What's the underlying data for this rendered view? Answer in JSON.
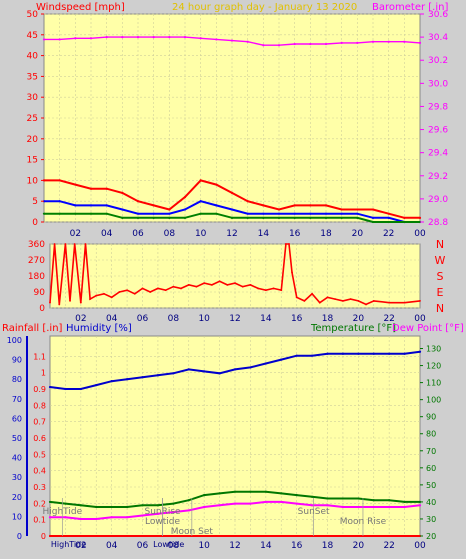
{
  "chart_data": [
    {
      "type": "line",
      "title": "24 hour graph day - January 13 2020",
      "ylabel_left": "Windspeed [mph]",
      "ylabel_right": "Barometer [.in]",
      "x_tick_labels": [
        "02",
        "04",
        "06",
        "08",
        "10",
        "12",
        "14",
        "16",
        "18",
        "20",
        "22",
        "00"
      ],
      "x_hours": [
        2,
        4,
        6,
        8,
        10,
        12,
        14,
        16,
        18,
        20,
        22,
        24
      ],
      "ylim_left": [
        0,
        50
      ],
      "y_ticks_left": [
        0,
        5,
        10,
        15,
        20,
        25,
        30,
        35,
        40,
        45,
        50
      ],
      "ylim_right": [
        28.8,
        30.6
      ],
      "y_ticks_right": [
        28.8,
        29.0,
        29.2,
        29.4,
        29.6,
        29.8,
        30.0,
        30.2,
        30.4,
        30.6
      ],
      "grid": true,
      "series": [
        {
          "name": "Barometer",
          "axis": "right",
          "color": "#ff00ff",
          "x": [
            0,
            1,
            2,
            3,
            4,
            5,
            6,
            7,
            8,
            9,
            10,
            11,
            12,
            13,
            14,
            15,
            16,
            17,
            18,
            19,
            20,
            21,
            22,
            23,
            24
          ],
          "y": [
            30.38,
            30.38,
            30.39,
            30.39,
            30.4,
            30.4,
            30.4,
            30.4,
            30.4,
            30.4,
            30.39,
            30.38,
            30.37,
            30.36,
            30.33,
            30.33,
            30.34,
            30.34,
            30.34,
            30.35,
            30.35,
            30.36,
            30.36,
            30.36,
            30.35
          ]
        },
        {
          "name": "Wind gust",
          "axis": "left",
          "color": "#ff0000",
          "x": [
            0,
            1,
            2,
            3,
            4,
            5,
            6,
            7,
            8,
            9,
            10,
            11,
            12,
            13,
            14,
            15,
            16,
            17,
            18,
            19,
            20,
            21,
            22,
            23,
            24
          ],
          "y": [
            10,
            10,
            9,
            8,
            8,
            7,
            5,
            4,
            3,
            6,
            10,
            9,
            7,
            5,
            4,
            3,
            4,
            4,
            4,
            3,
            3,
            3,
            2,
            1,
            1
          ]
        },
        {
          "name": "Wind speed",
          "axis": "left",
          "color": "#0000ff",
          "x": [
            0,
            1,
            2,
            3,
            4,
            5,
            6,
            7,
            8,
            9,
            10,
            11,
            12,
            13,
            14,
            15,
            16,
            17,
            18,
            19,
            20,
            21,
            22,
            23,
            24
          ],
          "y": [
            5,
            5,
            4,
            4,
            4,
            3,
            2,
            2,
            2,
            3,
            5,
            4,
            3,
            2,
            2,
            2,
            2,
            2,
            2,
            2,
            2,
            1,
            1,
            0,
            0
          ]
        },
        {
          "name": "Wind average",
          "axis": "left",
          "color": "#008000",
          "x": [
            0,
            1,
            2,
            3,
            4,
            5,
            6,
            7,
            8,
            9,
            10,
            11,
            12,
            13,
            14,
            15,
            16,
            17,
            18,
            19,
            20,
            21,
            22,
            23,
            24
          ],
          "y": [
            2,
            2,
            2,
            2,
            2,
            1,
            1,
            1,
            1,
            1,
            2,
            2,
            1,
            1,
            1,
            1,
            1,
            1,
            1,
            1,
            1,
            0,
            0,
            0,
            0
          ]
        }
      ]
    },
    {
      "type": "line",
      "ylabel_right": [
        "N",
        "W",
        "S",
        "E",
        "N"
      ],
      "x_tick_labels": [
        "02",
        "04",
        "06",
        "08",
        "10",
        "12",
        "14",
        "16",
        "18",
        "20",
        "22",
        "00"
      ],
      "x_hours": [
        2,
        4,
        6,
        8,
        10,
        12,
        14,
        16,
        18,
        20,
        22,
        24
      ],
      "ylim": [
        0,
        360
      ],
      "y_ticks": [
        0,
        90,
        180,
        270,
        360
      ],
      "grid": true,
      "series": [
        {
          "name": "Wind direction",
          "color": "#ff0000",
          "x": [
            0,
            0.3,
            0.6,
            1,
            1.3,
            1.6,
            2,
            2.3,
            2.6,
            3,
            3.5,
            4,
            4.5,
            5,
            5.5,
            6,
            6.5,
            7,
            7.5,
            8,
            8.5,
            9,
            9.5,
            10,
            10.5,
            11,
            11.5,
            12,
            12.5,
            13,
            13.5,
            14,
            14.5,
            15,
            15.3,
            15.5,
            15.7,
            16,
            16.5,
            17,
            17.5,
            18,
            18.5,
            19,
            19.5,
            20,
            20.5,
            21,
            22,
            23,
            24
          ],
          "y": [
            30,
            360,
            20,
            360,
            40,
            360,
            30,
            360,
            50,
            70,
            80,
            60,
            90,
            100,
            80,
            110,
            90,
            110,
            100,
            120,
            110,
            130,
            120,
            140,
            130,
            150,
            130,
            140,
            120,
            130,
            110,
            100,
            110,
            100,
            360,
            360,
            200,
            60,
            40,
            80,
            30,
            60,
            50,
            40,
            50,
            40,
            20,
            40,
            30,
            30,
            40
          ]
        }
      ]
    },
    {
      "type": "line",
      "ylabel_left_rain": "Rainfall [.in]",
      "ylabel_left_humidity": "Humidity [%]",
      "ylabel_right_temp": "Temperature [°F]",
      "ylabel_right_dew": "Dew Point [°F]",
      "x_tick_labels": [
        "02",
        "04",
        "06",
        "08",
        "10",
        "12",
        "14",
        "16",
        "18",
        "20",
        "22",
        "00"
      ],
      "x_hours": [
        2,
        4,
        6,
        8,
        10,
        12,
        14,
        16,
        18,
        20,
        22,
        24
      ],
      "ylim_humidity": [
        0,
        100
      ],
      "y_ticks_humidity": [
        0,
        10,
        20,
        30,
        40,
        50,
        60,
        70,
        80,
        90,
        100
      ],
      "ylim_rain": [
        0,
        1.2
      ],
      "y_ticks_rain": [
        0,
        0.1,
        0.2,
        0.3,
        0.4,
        0.5,
        0.6,
        0.7,
        0.8,
        0.9,
        1,
        1.1
      ],
      "ylim_temp": [
        20,
        135
      ],
      "y_ticks_temp": [
        20,
        30,
        40,
        50,
        60,
        70,
        80,
        90,
        100,
        110,
        120,
        130
      ],
      "grid": true,
      "series": [
        {
          "name": "Humidity",
          "axis": "humidity",
          "color": "#0000cc",
          "x": [
            0,
            1,
            2,
            3,
            4,
            5,
            6,
            7,
            8,
            9,
            10,
            11,
            12,
            13,
            14,
            15,
            16,
            17,
            18,
            19,
            20,
            21,
            22,
            23,
            24
          ],
          "y": [
            76,
            75,
            75,
            77,
            79,
            80,
            81,
            82,
            83,
            85,
            84,
            83,
            85,
            86,
            88,
            90,
            92,
            92,
            93,
            93,
            93,
            93,
            93,
            93,
            94
          ]
        },
        {
          "name": "Temperature",
          "axis": "temp",
          "color": "#007700",
          "x": [
            0,
            1,
            2,
            3,
            4,
            5,
            6,
            7,
            8,
            9,
            10,
            11,
            12,
            13,
            14,
            15,
            16,
            17,
            18,
            19,
            20,
            21,
            22,
            23,
            24
          ],
          "y": [
            40,
            39,
            38,
            37,
            37,
            37,
            38,
            38,
            39,
            41,
            44,
            45,
            46,
            46,
            46,
            45,
            44,
            43,
            42,
            42,
            42,
            41,
            41,
            40,
            40
          ]
        },
        {
          "name": "Dew Point",
          "axis": "temp",
          "color": "#ff00ff",
          "x": [
            0,
            1,
            2,
            3,
            4,
            5,
            6,
            7,
            8,
            9,
            10,
            11,
            12,
            13,
            14,
            15,
            16,
            17,
            18,
            19,
            20,
            21,
            22,
            23,
            24
          ],
          "y": [
            31,
            31,
            30,
            30,
            31,
            31,
            32,
            33,
            34,
            35,
            37,
            38,
            39,
            39,
            40,
            40,
            39,
            38,
            38,
            37,
            37,
            37,
            37,
            37,
            38
          ]
        },
        {
          "name": "Rainfall",
          "axis": "rain",
          "color": "#ff0000",
          "x": [
            0,
            24
          ],
          "y": [
            0,
            0
          ]
        }
      ],
      "annotations": [
        {
          "text": "HighTide",
          "x": 0.8,
          "row": 1
        },
        {
          "text": "SunRise",
          "x": 7.3,
          "row": 1
        },
        {
          "text": "Lowtide",
          "x": 7.3,
          "row": 2
        },
        {
          "text": "Moon Set",
          "x": 9.2,
          "row": 3
        },
        {
          "text": "SunSet",
          "x": 17.1,
          "row": 1
        },
        {
          "text": "Moon Rise",
          "x": 20.3,
          "row": 2
        }
      ],
      "bottom_labels": [
        {
          "text": "HighTide",
          "x": 1.2
        },
        {
          "text": "Lowtide",
          "x": 7.7
        }
      ]
    }
  ]
}
